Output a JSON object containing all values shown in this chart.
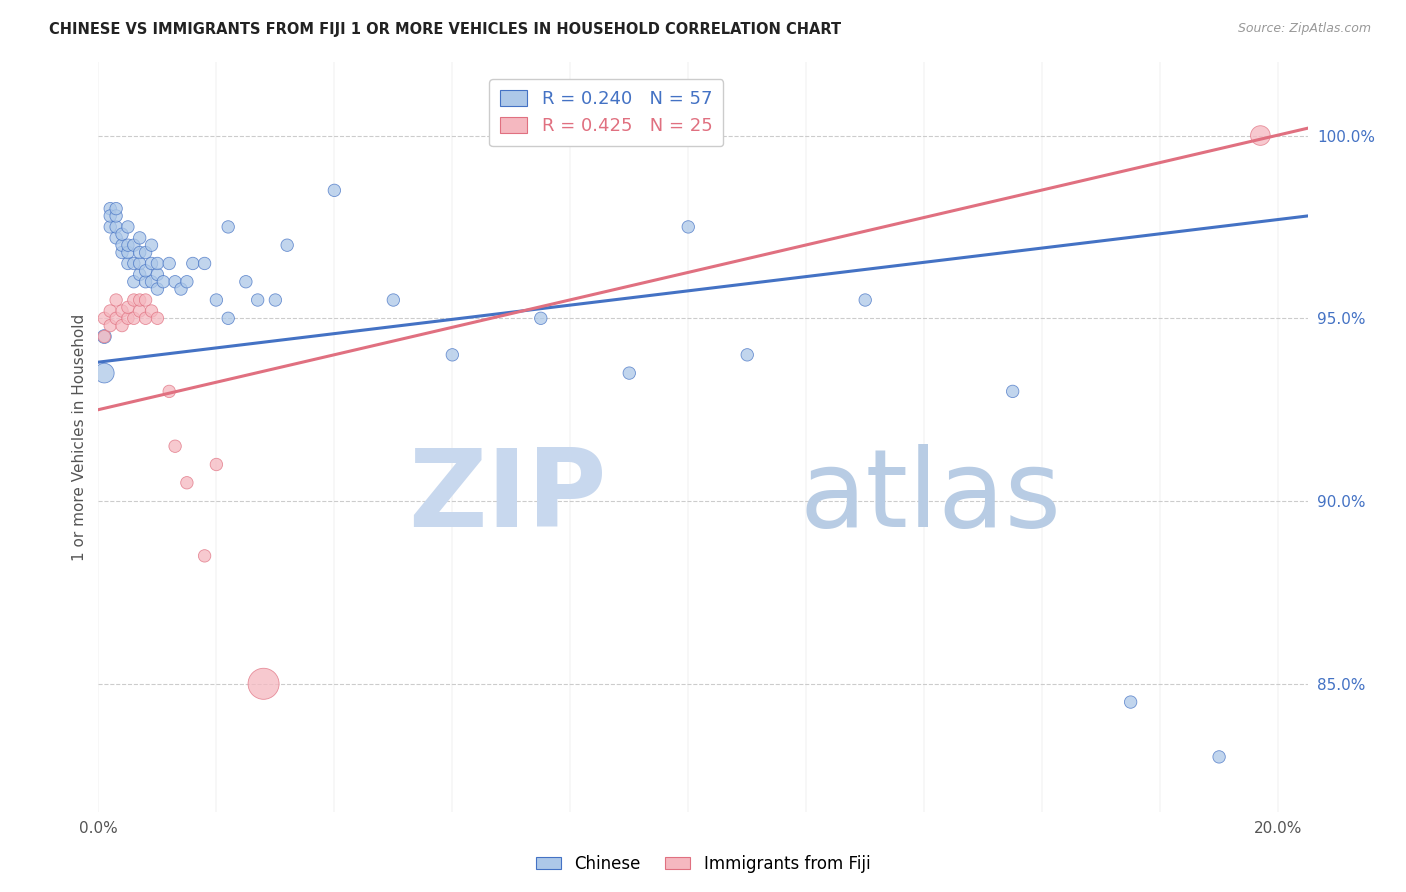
{
  "title": "CHINESE VS IMMIGRANTS FROM FIJI 1 OR MORE VEHICLES IN HOUSEHOLD CORRELATION CHART",
  "source": "Source: ZipAtlas.com",
  "ylabel": "1 or more Vehicles in Household",
  "xlim": [
    0.0,
    0.205
  ],
  "ylim": [
    81.5,
    102.0
  ],
  "chinese_R": 0.24,
  "chinese_N": 57,
  "fiji_R": 0.425,
  "fiji_N": 25,
  "chinese_color": "#adc8e8",
  "fiji_color": "#f5b8c0",
  "trendline_chinese_color": "#4472c4",
  "trendline_fiji_color": "#e07080",
  "background_color": "#ffffff",
  "grid_color": "#cccccc",
  "watermark_zip": "ZIP",
  "watermark_atlas": "atlas",
  "watermark_color_zip": "#c8d8ee",
  "watermark_color_atlas": "#b8cce4",
  "ytick_positions": [
    85.0,
    90.0,
    95.0,
    100.0
  ],
  "ytick_labels": [
    "85.0%",
    "90.0%",
    "95.0%",
    "100.0%"
  ],
  "xtick_positions": [
    0.0,
    0.02,
    0.04,
    0.06,
    0.08,
    0.1,
    0.12,
    0.14,
    0.16,
    0.18,
    0.2
  ],
  "xtick_labels": [
    "0.0%",
    "",
    "",
    "",
    "",
    "",
    "",
    "",
    "",
    "",
    "20.0%"
  ],
  "chinese_x": [
    0.001,
    0.001,
    0.002,
    0.002,
    0.002,
    0.003,
    0.003,
    0.003,
    0.003,
    0.004,
    0.004,
    0.004,
    0.005,
    0.005,
    0.005,
    0.005,
    0.006,
    0.006,
    0.006,
    0.007,
    0.007,
    0.007,
    0.007,
    0.008,
    0.008,
    0.008,
    0.009,
    0.009,
    0.009,
    0.01,
    0.01,
    0.01,
    0.011,
    0.012,
    0.013,
    0.014,
    0.015,
    0.016,
    0.018,
    0.02,
    0.022,
    0.022,
    0.025,
    0.027,
    0.03,
    0.032,
    0.04,
    0.05,
    0.06,
    0.075,
    0.09,
    0.1,
    0.11,
    0.13,
    0.155,
    0.175,
    0.19
  ],
  "chinese_y": [
    93.5,
    94.5,
    98.0,
    97.5,
    97.8,
    97.2,
    97.5,
    97.8,
    98.0,
    96.8,
    97.0,
    97.3,
    96.5,
    96.8,
    97.0,
    97.5,
    96.0,
    96.5,
    97.0,
    96.2,
    96.5,
    96.8,
    97.2,
    96.0,
    96.3,
    96.8,
    96.0,
    96.5,
    97.0,
    95.8,
    96.2,
    96.5,
    96.0,
    96.5,
    96.0,
    95.8,
    96.0,
    96.5,
    96.5,
    95.5,
    95.0,
    97.5,
    96.0,
    95.5,
    95.5,
    97.0,
    98.5,
    95.5,
    94.0,
    95.0,
    93.5,
    97.5,
    94.0,
    95.5,
    93.0,
    84.5,
    83.0
  ],
  "chinese_sizes": [
    200,
    100,
    80,
    80,
    80,
    80,
    80,
    80,
    80,
    80,
    80,
    80,
    80,
    80,
    80,
    80,
    80,
    80,
    80,
    80,
    80,
    80,
    80,
    80,
    80,
    80,
    80,
    80,
    80,
    80,
    80,
    80,
    80,
    80,
    80,
    80,
    80,
    80,
    80,
    80,
    80,
    80,
    80,
    80,
    80,
    80,
    80,
    80,
    80,
    80,
    80,
    80,
    80,
    80,
    80,
    80,
    80
  ],
  "fiji_x": [
    0.001,
    0.001,
    0.002,
    0.002,
    0.003,
    0.003,
    0.004,
    0.004,
    0.005,
    0.005,
    0.006,
    0.006,
    0.007,
    0.007,
    0.008,
    0.008,
    0.009,
    0.01,
    0.012,
    0.013,
    0.015,
    0.018,
    0.02,
    0.028,
    0.197
  ],
  "fiji_y": [
    94.5,
    95.0,
    94.8,
    95.2,
    95.0,
    95.5,
    94.8,
    95.2,
    95.0,
    95.3,
    95.0,
    95.5,
    95.2,
    95.5,
    95.0,
    95.5,
    95.2,
    95.0,
    93.0,
    91.5,
    90.5,
    88.5,
    91.0,
    85.0,
    100.0
  ],
  "fiji_sizes": [
    80,
    80,
    80,
    80,
    80,
    80,
    80,
    80,
    80,
    80,
    80,
    80,
    80,
    80,
    80,
    80,
    80,
    80,
    80,
    80,
    80,
    80,
    80,
    500,
    200
  ],
  "trendline_blue_x0": 0.0,
  "trendline_blue_y0": 93.8,
  "trendline_blue_x1": 0.205,
  "trendline_blue_y1": 97.8,
  "trendline_pink_x0": 0.0,
  "trendline_pink_y0": 92.5,
  "trendline_pink_x1": 0.205,
  "trendline_pink_y1": 100.2
}
